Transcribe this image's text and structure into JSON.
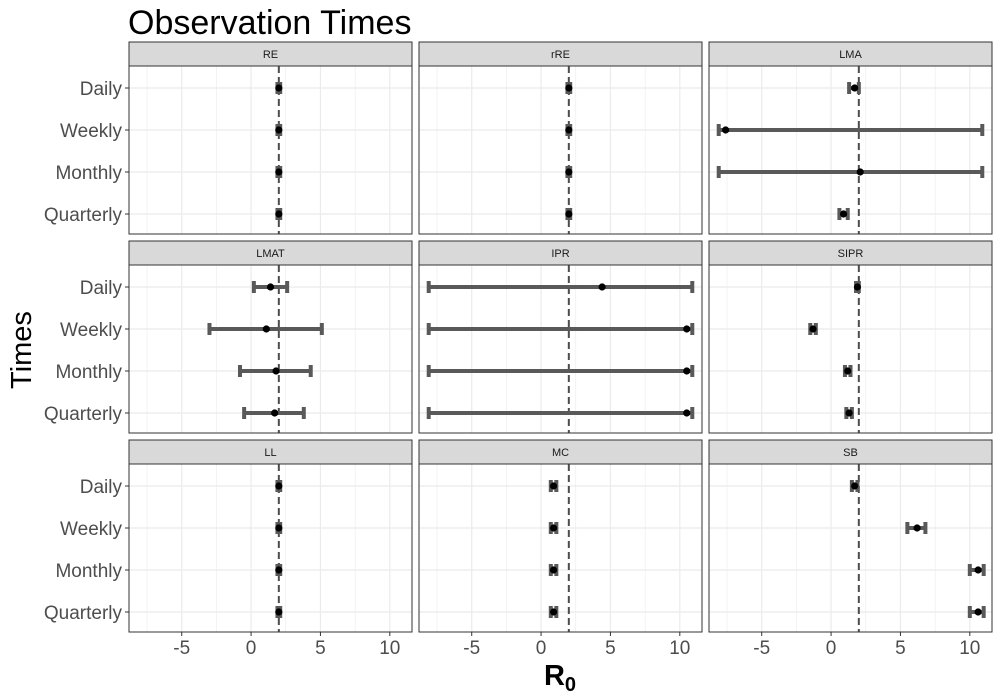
{
  "chart_data": {
    "type": "errorbar",
    "title": "Observation Times",
    "xlabel": "R",
    "xlabel_subscript": "0",
    "ylabel": "Times",
    "xlim": [
      -8.8,
      11.6
    ],
    "xticks": [
      -5,
      0,
      5,
      10
    ],
    "xtick_labels": [
      "-5",
      "0",
      "5",
      "10"
    ],
    "categories": [
      "Daily",
      "Weekly",
      "Monthly",
      "Quarterly"
    ],
    "reference_line": 2,
    "grid": true,
    "panels": [
      {
        "name": "RE",
        "estimate": [
          2.0,
          2.0,
          2.0,
          2.0
        ],
        "lower": [
          1.9,
          1.9,
          1.9,
          1.9
        ],
        "upper": [
          2.1,
          2.1,
          2.1,
          2.1
        ]
      },
      {
        "name": "rRE",
        "estimate": [
          2.0,
          2.0,
          2.0,
          2.0
        ],
        "lower": [
          1.9,
          1.9,
          1.9,
          1.9
        ],
        "upper": [
          2.1,
          2.1,
          2.1,
          2.1
        ]
      },
      {
        "name": "LMA",
        "estimate": [
          1.7,
          -7.6,
          2.1,
          0.9
        ],
        "lower": [
          1.3,
          -8.1,
          -8.1,
          0.6
        ],
        "upper": [
          2.0,
          10.9,
          10.9,
          1.2
        ]
      },
      {
        "name": "LMAT",
        "estimate": [
          1.4,
          1.1,
          1.8,
          1.7
        ],
        "lower": [
          0.2,
          -3.0,
          -0.8,
          -0.5
        ],
        "upper": [
          2.6,
          5.1,
          4.3,
          3.8
        ]
      },
      {
        "name": "IPR",
        "estimate": [
          4.4,
          10.5,
          10.5,
          10.5
        ],
        "lower": [
          -8.1,
          -8.1,
          -8.1,
          -8.1
        ],
        "upper": [
          10.9,
          10.9,
          10.9,
          10.9
        ]
      },
      {
        "name": "SIPR",
        "estimate": [
          1.9,
          -1.3,
          1.2,
          1.3
        ],
        "lower": [
          1.8,
          -1.5,
          1.0,
          1.1
        ],
        "upper": [
          2.0,
          -1.1,
          1.4,
          1.5
        ]
      },
      {
        "name": "LL",
        "estimate": [
          2.0,
          2.0,
          2.0,
          2.0
        ],
        "lower": [
          1.9,
          1.9,
          1.9,
          1.9
        ],
        "upper": [
          2.1,
          2.1,
          2.1,
          2.1
        ]
      },
      {
        "name": "MC",
        "estimate": [
          0.9,
          0.9,
          0.9,
          0.9
        ],
        "lower": [
          0.7,
          0.7,
          0.7,
          0.7
        ],
        "upper": [
          1.1,
          1.1,
          1.1,
          1.1
        ]
      },
      {
        "name": "SB",
        "estimate": [
          1.7,
          6.2,
          10.6,
          10.6
        ],
        "lower": [
          1.5,
          5.5,
          10.0,
          10.0
        ],
        "upper": [
          1.9,
          6.8,
          11.0,
          11.0
        ]
      }
    ]
  },
  "colors": {
    "strip_background": "#d9d9d9",
    "panel_border": "#333333",
    "grid": "#ebebeb",
    "errorbar": "#595959",
    "point": "#000000",
    "reference_line": "#4d4d4d"
  }
}
